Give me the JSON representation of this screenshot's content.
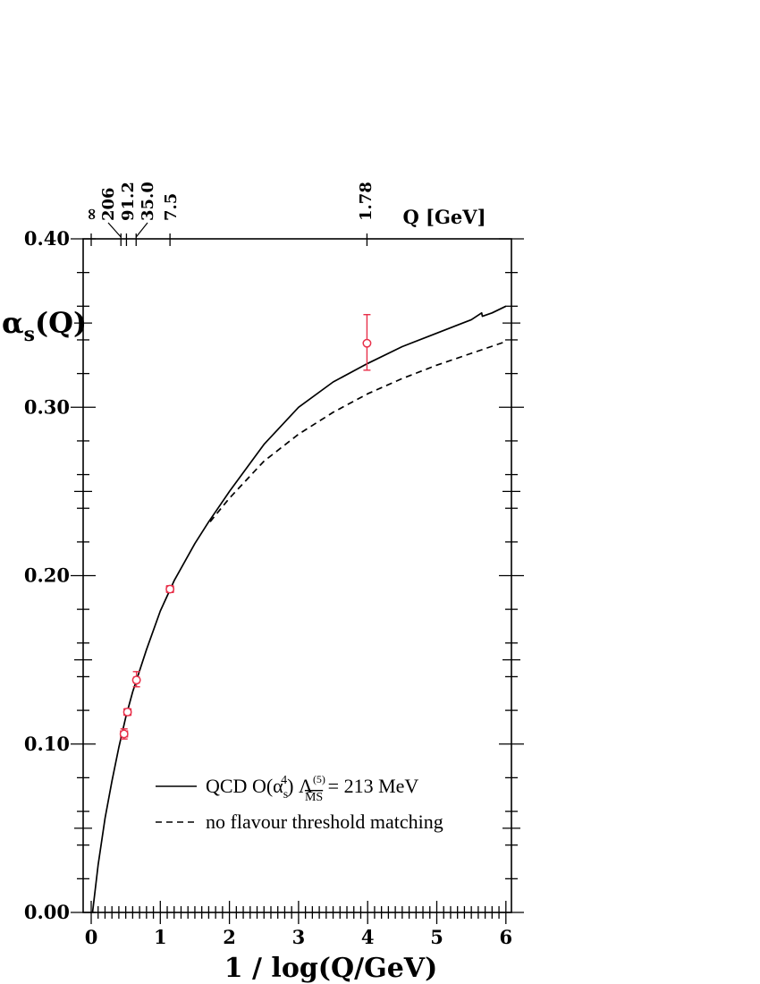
{
  "chart_data": {
    "type": "line",
    "xlabel": "1 / log(Q/GeV)",
    "ylabel_symbol": "α",
    "ylabel_sub": "s",
    "ylabel_rest": "(Q)",
    "top_axis_label": "Q [GeV]",
    "xlim": [
      -0.1,
      6.1
    ],
    "ylim": [
      0.0,
      0.4
    ],
    "x_ticks": [
      "0",
      "1",
      "2",
      "3",
      "4",
      "5",
      "6"
    ],
    "y_ticks": [
      "0.00",
      "0.10",
      "0.20",
      "0.30",
      "0.40"
    ],
    "top_ticks": [
      {
        "label": "∞",
        "x": 0.0
      },
      {
        "label": "206",
        "x": 0.43
      },
      {
        "label": "91.2",
        "x": 0.51
      },
      {
        "label": "35.0",
        "x": 0.65
      },
      {
        "label": "7.5",
        "x": 1.14
      },
      {
        "label": "1.78",
        "x": 3.99
      }
    ],
    "legend": {
      "qcd_prefix": "QCD O(α",
      "qcd_sub": "s",
      "qcd_sup": "4",
      "qcd_lambda": ") Λ",
      "qcd_lambda_sup": "(5)",
      "qcd_lambda_sub": "MS",
      "qcd_suffix": " = 213 MeV",
      "dashed": "no flavour threshold matching"
    },
    "series": [
      {
        "key": "qcd",
        "style": "solid",
        "x": [
          0.02,
          0.1,
          0.2,
          0.3,
          0.4,
          0.5,
          0.6,
          0.8,
          1.0,
          1.2,
          1.5,
          1.7,
          2.0,
          2.5,
          3.0,
          3.5,
          4.0,
          4.5,
          5.0,
          5.5,
          5.65,
          5.66,
          5.8,
          6.0
        ],
        "y": [
          0.0,
          0.028,
          0.056,
          0.078,
          0.098,
          0.116,
          0.131,
          0.156,
          0.179,
          0.197,
          0.219,
          0.232,
          0.25,
          0.278,
          0.3,
          0.315,
          0.326,
          0.336,
          0.344,
          0.352,
          0.356,
          0.354,
          0.356,
          0.36
        ]
      },
      {
        "key": "nomatch",
        "style": "dashed",
        "x": [
          1.72,
          2.0,
          2.5,
          3.0,
          3.5,
          4.0,
          4.5,
          5.0,
          5.5,
          6.0
        ],
        "y": [
          0.232,
          0.246,
          0.268,
          0.284,
          0.297,
          0.308,
          0.317,
          0.325,
          0.332,
          0.339
        ]
      }
    ],
    "points": [
      {
        "x": 0.475,
        "y": 0.106,
        "err_lo": 0.003,
        "err_hi": 0.003,
        "xerr": 0.05
      },
      {
        "x": 0.525,
        "y": 0.119,
        "err_lo": 0.002,
        "err_hi": 0.002,
        "xerr": 0.05
      },
      {
        "x": 0.655,
        "y": 0.138,
        "err_lo": 0.004,
        "err_hi": 0.005,
        "xerr": 0.04
      },
      {
        "x": 1.14,
        "y": 0.192,
        "err_lo": 0.002,
        "err_hi": 0.002,
        "xerr": 0.05
      },
      {
        "x": 3.99,
        "y": 0.338,
        "err_lo": 0.016,
        "err_hi": 0.017,
        "xerr": 0.0
      }
    ],
    "colors": {
      "axes": "#000000",
      "points": "#e8304a"
    }
  }
}
